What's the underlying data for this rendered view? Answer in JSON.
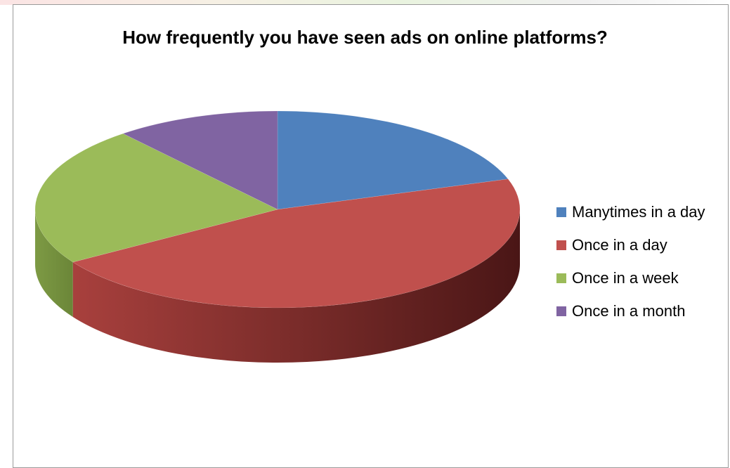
{
  "chart_data": {
    "type": "pie",
    "title": "How frequently you have seen ads on online platforms?",
    "categories": [
      "Manytimes in a day",
      "Once in a day",
      "Once in a week",
      "Once in a month"
    ],
    "values": [
      20,
      46,
      23,
      11
    ],
    "colors": [
      "#4f81bd",
      "#c0504d",
      "#9bbb59",
      "#8064a2"
    ],
    "style": "3d",
    "legend": "right"
  }
}
